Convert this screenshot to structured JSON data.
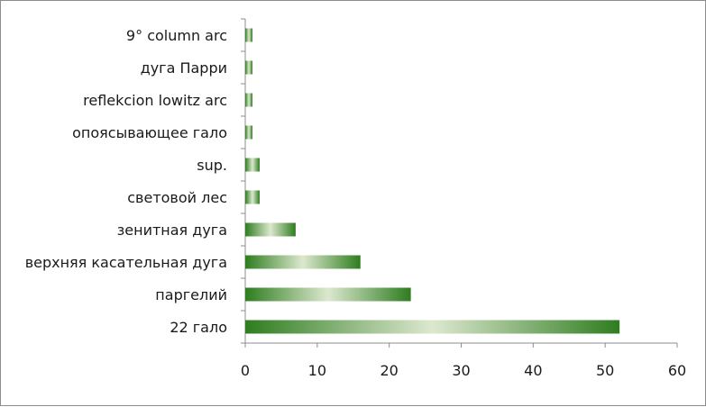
{
  "chart_data": {
    "type": "bar",
    "orientation": "horizontal",
    "categories": [
      "22 гало",
      "паргелий",
      "верхняя касательная дуга",
      "зенитная дуга",
      "световой лес",
      "sup.",
      "опоясывающее гало",
      "reflekcion lowitz arc",
      "дуга Парри",
      "9° column arc"
    ],
    "values": [
      52,
      23,
      16,
      7,
      2,
      2,
      1,
      1,
      1,
      1
    ],
    "xlim": [
      0,
      60
    ],
    "xticks": [
      "0",
      "10",
      "20",
      "30",
      "40",
      "50",
      "60"
    ],
    "grid": false,
    "legend": false,
    "colors": {
      "bar_dark": "#2e7d1f",
      "bar_light": "#dde8cf",
      "axis": "#8c8c8c"
    }
  }
}
